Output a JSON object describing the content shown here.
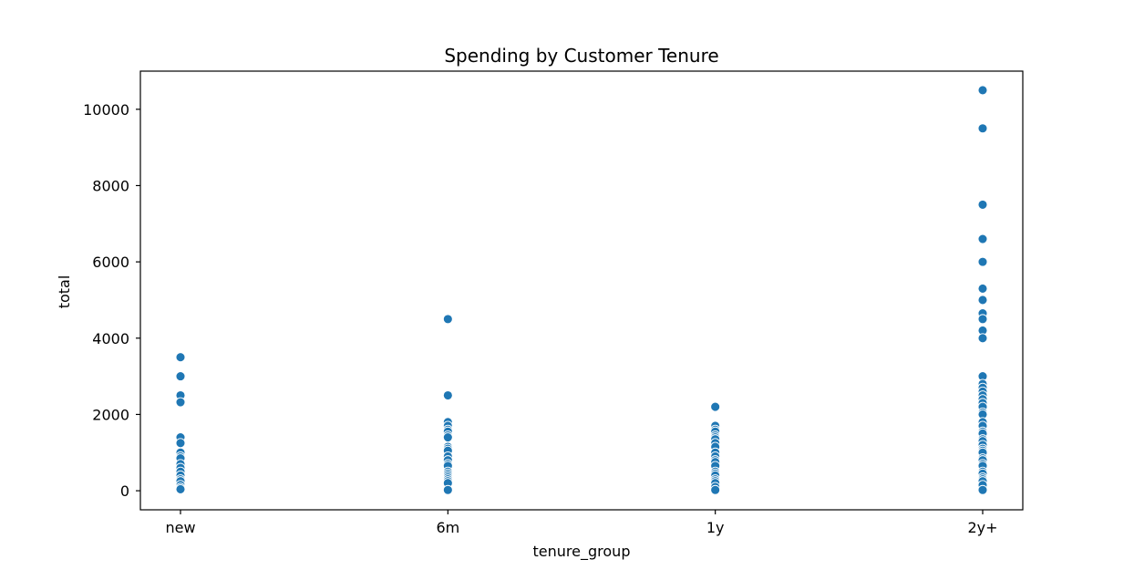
{
  "chart_data": {
    "type": "scatter",
    "title": "Spending by Customer Tenure",
    "xlabel": "tenure_group",
    "ylabel": "total",
    "categories": [
      "new",
      "6m",
      "1y",
      "2y+"
    ],
    "ylim": [
      -500,
      11000
    ],
    "yticks": [
      0,
      2000,
      4000,
      6000,
      8000,
      10000
    ],
    "grid": false,
    "marker_color": "#1f77b4",
    "series": [
      {
        "values": [
          {
            "x": "new",
            "y": 3500
          },
          {
            "x": "new",
            "y": 3000
          },
          {
            "x": "new",
            "y": 2500
          },
          {
            "x": "new",
            "y": 2320
          },
          {
            "x": "new",
            "y": 1400
          },
          {
            "x": "new",
            "y": 1250
          },
          {
            "x": "new",
            "y": 1000
          },
          {
            "x": "new",
            "y": 900
          },
          {
            "x": "new",
            "y": 850
          },
          {
            "x": "new",
            "y": 700
          },
          {
            "x": "new",
            "y": 600
          },
          {
            "x": "new",
            "y": 500
          },
          {
            "x": "new",
            "y": 400
          },
          {
            "x": "new",
            "y": 300
          },
          {
            "x": "new",
            "y": 250
          },
          {
            "x": "new",
            "y": 150
          },
          {
            "x": "new",
            "y": 80
          },
          {
            "x": "new",
            "y": 40
          },
          {
            "x": "6m",
            "y": 4500
          },
          {
            "x": "6m",
            "y": 2500
          },
          {
            "x": "6m",
            "y": 1800
          },
          {
            "x": "6m",
            "y": 1700
          },
          {
            "x": "6m",
            "y": 1600
          },
          {
            "x": "6m",
            "y": 1550
          },
          {
            "x": "6m",
            "y": 1450
          },
          {
            "x": "6m",
            "y": 1400
          },
          {
            "x": "6m",
            "y": 1150
          },
          {
            "x": "6m",
            "y": 1100
          },
          {
            "x": "6m",
            "y": 1050
          },
          {
            "x": "6m",
            "y": 900
          },
          {
            "x": "6m",
            "y": 800
          },
          {
            "x": "6m",
            "y": 700
          },
          {
            "x": "6m",
            "y": 650
          },
          {
            "x": "6m",
            "y": 500
          },
          {
            "x": "6m",
            "y": 450
          },
          {
            "x": "6m",
            "y": 400
          },
          {
            "x": "6m",
            "y": 350
          },
          {
            "x": "6m",
            "y": 300
          },
          {
            "x": "6m",
            "y": 250
          },
          {
            "x": "6m",
            "y": 200
          },
          {
            "x": "6m",
            "y": 20
          },
          {
            "x": "1y",
            "y": 2200
          },
          {
            "x": "1y",
            "y": 1700
          },
          {
            "x": "1y",
            "y": 1600
          },
          {
            "x": "1y",
            "y": 1550
          },
          {
            "x": "1y",
            "y": 1450
          },
          {
            "x": "1y",
            "y": 1400
          },
          {
            "x": "1y",
            "y": 1350
          },
          {
            "x": "1y",
            "y": 1250
          },
          {
            "x": "1y",
            "y": 1150
          },
          {
            "x": "1y",
            "y": 1000
          },
          {
            "x": "1y",
            "y": 900
          },
          {
            "x": "1y",
            "y": 800
          },
          {
            "x": "1y",
            "y": 750
          },
          {
            "x": "1y",
            "y": 650
          },
          {
            "x": "1y",
            "y": 500
          },
          {
            "x": "1y",
            "y": 450
          },
          {
            "x": "1y",
            "y": 400
          },
          {
            "x": "1y",
            "y": 300
          },
          {
            "x": "1y",
            "y": 250
          },
          {
            "x": "1y",
            "y": 200
          },
          {
            "x": "1y",
            "y": 100
          },
          {
            "x": "1y",
            "y": 20
          },
          {
            "x": "2y+",
            "y": 10500
          },
          {
            "x": "2y+",
            "y": 9500
          },
          {
            "x": "2y+",
            "y": 7500
          },
          {
            "x": "2y+",
            "y": 6600
          },
          {
            "x": "2y+",
            "y": 6000
          },
          {
            "x": "2y+",
            "y": 5300
          },
          {
            "x": "2y+",
            "y": 5000
          },
          {
            "x": "2y+",
            "y": 4650
          },
          {
            "x": "2y+",
            "y": 4500
          },
          {
            "x": "2y+",
            "y": 4200
          },
          {
            "x": "2y+",
            "y": 4000
          },
          {
            "x": "2y+",
            "y": 3000
          },
          {
            "x": "2y+",
            "y": 2800
          },
          {
            "x": "2y+",
            "y": 2700
          },
          {
            "x": "2y+",
            "y": 2600
          },
          {
            "x": "2y+",
            "y": 2500
          },
          {
            "x": "2y+",
            "y": 2400
          },
          {
            "x": "2y+",
            "y": 2300
          },
          {
            "x": "2y+",
            "y": 2200
          },
          {
            "x": "2y+",
            "y": 2050
          },
          {
            "x": "2y+",
            "y": 2000
          },
          {
            "x": "2y+",
            "y": 1800
          },
          {
            "x": "2y+",
            "y": 1700
          },
          {
            "x": "2y+",
            "y": 1550
          },
          {
            "x": "2y+",
            "y": 1500
          },
          {
            "x": "2y+",
            "y": 1350
          },
          {
            "x": "2y+",
            "y": 1300
          },
          {
            "x": "2y+",
            "y": 1200
          },
          {
            "x": "2y+",
            "y": 1100
          },
          {
            "x": "2y+",
            "y": 1050
          },
          {
            "x": "2y+",
            "y": 1000
          },
          {
            "x": "2y+",
            "y": 850
          },
          {
            "x": "2y+",
            "y": 800
          },
          {
            "x": "2y+",
            "y": 700
          },
          {
            "x": "2y+",
            "y": 650
          },
          {
            "x": "2y+",
            "y": 500
          },
          {
            "x": "2y+",
            "y": 450
          },
          {
            "x": "2y+",
            "y": 350
          },
          {
            "x": "2y+",
            "y": 300
          },
          {
            "x": "2y+",
            "y": 250
          },
          {
            "x": "2y+",
            "y": 150
          },
          {
            "x": "2y+",
            "y": 20
          }
        ]
      }
    ]
  }
}
